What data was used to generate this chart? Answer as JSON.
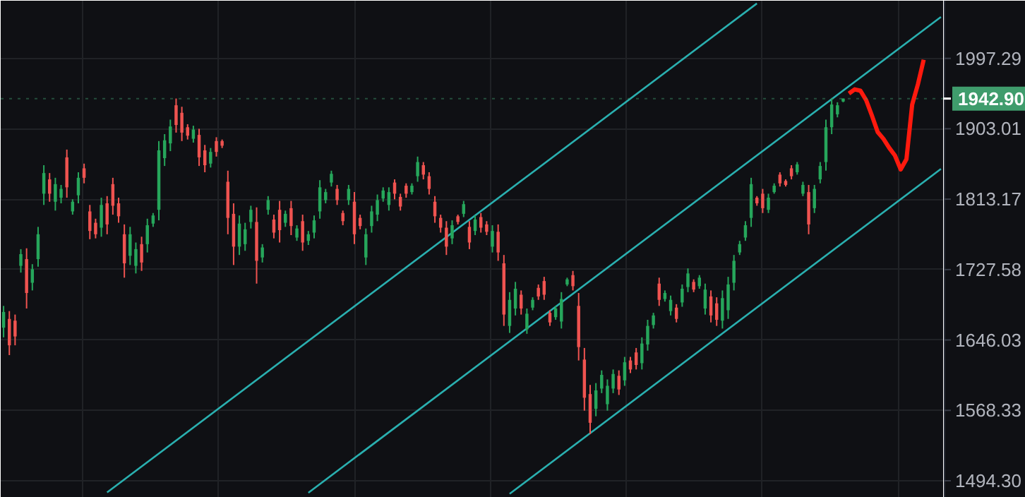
{
  "chart_data": {
    "type": "candlestick",
    "log": true,
    "grid": true,
    "tick_labels": "y",
    "ylim": [
      1477,
      2078
    ],
    "yticks": [
      {
        "value": 1494.3,
        "label": "1494.30"
      },
      1568.33,
      1646.03,
      1727.58,
      1813.17,
      1903.01,
      1997.29
    ],
    "categories": [
      null,
      null,
      null,
      null,
      null,
      null,
      null,
      null,
      null,
      null,
      null,
      null,
      null,
      null,
      null,
      null,
      null,
      null,
      null,
      null,
      null,
      null,
      null,
      null,
      null,
      null,
      null,
      null,
      null,
      null,
      null,
      null,
      null,
      null,
      null,
      null,
      null,
      null,
      null,
      null,
      null,
      null,
      null,
      null,
      null,
      null,
      null,
      null,
      null,
      null,
      null,
      null,
      null,
      null,
      null,
      null,
      null,
      null,
      null,
      null,
      null,
      null,
      null,
      null,
      null,
      null,
      null,
      null,
      null,
      null,
      null,
      null,
      null,
      null,
      null,
      null,
      null,
      null,
      null,
      null,
      null,
      null,
      null,
      null,
      null,
      null,
      null,
      null,
      null,
      null,
      null,
      null,
      null,
      null,
      null,
      null,
      null,
      null,
      null,
      null,
      null,
      null,
      null,
      null,
      null,
      null,
      null,
      null,
      null,
      null,
      null,
      null,
      null,
      null,
      null,
      null,
      null,
      null,
      null,
      null,
      null,
      null,
      null,
      null,
      null,
      null,
      null,
      null,
      null,
      null,
      null,
      null,
      null,
      null,
      null,
      null,
      null,
      null,
      null,
      null,
      null,
      null,
      null,
      null,
      null,
      null,
      null,
      null,
      null,
      null,
      null,
      null,
      null,
      null,
      null,
      null,
      null,
      null,
      null,
      null,
      null,
      null,
      null,
      null
    ],
    "ohlc": [
      [
        1660,
        1685,
        1649,
        1678
      ],
      [
        1670,
        1679,
        1629,
        1640
      ],
      [
        1668,
        1675,
        1640,
        1650
      ],
      [
        1732,
        1752,
        1724,
        1746
      ],
      [
        1740,
        1753,
        1682,
        1700
      ],
      [
        1712,
        1734,
        1703,
        1728
      ],
      [
        1740,
        1779,
        1731,
        1770
      ],
      [
        1820,
        1856,
        1806,
        1846
      ],
      [
        1838,
        1846,
        1810,
        1820
      ],
      [
        1810,
        1840,
        1799,
        1832
      ],
      [
        1815,
        1831,
        1808,
        1826
      ],
      [
        1866,
        1876,
        1815,
        1828
      ],
      [
        1798,
        1813,
        1794,
        1810
      ],
      [
        1818,
        1847,
        1808,
        1840
      ],
      [
        1852,
        1858,
        1833,
        1840
      ],
      [
        1798,
        1806,
        1764,
        1774
      ],
      [
        1784,
        1789,
        1765,
        1770
      ],
      [
        1778,
        1815,
        1767,
        1806
      ],
      [
        1808,
        1817,
        1770,
        1782
      ],
      [
        1832,
        1840,
        1794,
        1805
      ],
      [
        1808,
        1815,
        1784,
        1792
      ],
      [
        1770,
        1782,
        1718,
        1735
      ],
      [
        1744,
        1779,
        1733,
        1770
      ],
      [
        1732,
        1760,
        1723,
        1752
      ],
      [
        1758,
        1767,
        1726,
        1736
      ],
      [
        1758,
        1789,
        1748,
        1781
      ],
      [
        1783,
        1796,
        1779,
        1793
      ],
      [
        1800,
        1887,
        1787,
        1875
      ],
      [
        1865,
        1896,
        1855,
        1888
      ],
      [
        1884,
        1915,
        1874,
        1906
      ],
      [
        1934,
        1943,
        1898,
        1908
      ],
      [
        1924,
        1932,
        1887,
        1898
      ],
      [
        1905,
        1909,
        1889,
        1894
      ],
      [
        1890,
        1907,
        1885,
        1902
      ],
      [
        1895,
        1903,
        1855,
        1866
      ],
      [
        1875,
        1882,
        1847,
        1856
      ],
      [
        1858,
        1878,
        1853,
        1873
      ],
      [
        1887,
        1892,
        1867,
        1873
      ],
      [
        1887,
        1889,
        1878,
        1881
      ],
      [
        1835,
        1849,
        1770,
        1790
      ],
      [
        1795,
        1808,
        1733,
        1755
      ],
      [
        1755,
        1793,
        1745,
        1783
      ],
      [
        1758,
        1784,
        1750,
        1776
      ],
      [
        1785,
        1805,
        1777,
        1800
      ],
      [
        1785,
        1803,
        1711,
        1738
      ],
      [
        1742,
        1758,
        1736,
        1754
      ],
      [
        1800,
        1817,
        1794,
        1812
      ],
      [
        1788,
        1794,
        1765,
        1772
      ],
      [
        1800,
        1811,
        1760,
        1775
      ],
      [
        1784,
        1799,
        1779,
        1795
      ],
      [
        1802,
        1811,
        1769,
        1780
      ],
      [
        1766,
        1781,
        1762,
        1777
      ],
      [
        1786,
        1794,
        1750,
        1760
      ],
      [
        1762,
        1774,
        1757,
        1770
      ],
      [
        1772,
        1793,
        1765,
        1787
      ],
      [
        1798,
        1837,
        1789,
        1828
      ],
      [
        1812,
        1826,
        1808,
        1822
      ],
      [
        1834,
        1849,
        1829,
        1845
      ],
      [
        1826,
        1831,
        1806,
        1812
      ],
      [
        1796,
        1799,
        1781,
        1786
      ],
      [
        1812,
        1831,
        1806,
        1826
      ],
      [
        1810,
        1822,
        1758,
        1770
      ],
      [
        1790,
        1794,
        1776,
        1780
      ],
      [
        1742,
        1777,
        1733,
        1770
      ],
      [
        1780,
        1805,
        1772,
        1798
      ],
      [
        1794,
        1819,
        1786,
        1812
      ],
      [
        1814,
        1828,
        1810,
        1824
      ],
      [
        1806,
        1828,
        1799,
        1822
      ],
      [
        1834,
        1838,
        1813,
        1820
      ],
      [
        1816,
        1820,
        1799,
        1804
      ],
      [
        1830,
        1833,
        1815,
        1820
      ],
      [
        1822,
        1833,
        1819,
        1830
      ],
      [
        1842,
        1867,
        1835,
        1860
      ],
      [
        1856,
        1860,
        1838,
        1844
      ],
      [
        1842,
        1847,
        1819,
        1826
      ],
      [
        1810,
        1817,
        1784,
        1792
      ],
      [
        1790,
        1794,
        1772,
        1778
      ],
      [
        1778,
        1786,
        1745,
        1755
      ],
      [
        1765,
        1787,
        1758,
        1781
      ],
      [
        1792,
        1794,
        1782,
        1785
      ],
      [
        1795,
        1811,
        1791,
        1807
      ],
      [
        1779,
        1786,
        1752,
        1760
      ],
      [
        1774,
        1793,
        1769,
        1788
      ],
      [
        1791,
        1796,
        1772,
        1778
      ],
      [
        1782,
        1786,
        1769,
        1773
      ],
      [
        1755,
        1781,
        1748,
        1774
      ],
      [
        1773,
        1782,
        1738,
        1748
      ],
      [
        1735,
        1745,
        1662,
        1675
      ],
      [
        1662,
        1701,
        1654,
        1692
      ],
      [
        1682,
        1713,
        1674,
        1705
      ],
      [
        1698,
        1703,
        1675,
        1682
      ],
      [
        1658,
        1682,
        1653,
        1676
      ],
      [
        1683,
        1695,
        1680,
        1692
      ],
      [
        1706,
        1710,
        1692,
        1696
      ],
      [
        1714,
        1719,
        1692,
        1698
      ],
      [
        1677,
        1680,
        1662,
        1666
      ],
      [
        1672,
        1685,
        1669,
        1682
      ],
      [
        1667,
        1701,
        1659,
        1693
      ],
      [
        1710,
        1718,
        1708,
        1716
      ],
      [
        1721,
        1726,
        1703,
        1708
      ],
      [
        1685,
        1700,
        1623,
        1638
      ],
      [
        1624,
        1637,
        1568,
        1582
      ],
      [
        1586,
        1596,
        1543,
        1555
      ],
      [
        1570,
        1598,
        1562,
        1590
      ],
      [
        1592,
        1612,
        1587,
        1607
      ],
      [
        1575,
        1602,
        1568,
        1595
      ],
      [
        1592,
        1613,
        1587,
        1608
      ],
      [
        1606,
        1612,
        1585,
        1591
      ],
      [
        1601,
        1627,
        1595,
        1621
      ],
      [
        1623,
        1627,
        1609,
        1613
      ],
      [
        1632,
        1637,
        1613,
        1618
      ],
      [
        1620,
        1649,
        1613,
        1642
      ],
      [
        1641,
        1669,
        1634,
        1662
      ],
      [
        1663,
        1677,
        1659,
        1674
      ],
      [
        1711,
        1718,
        1685,
        1692
      ],
      [
        1693,
        1703,
        1690,
        1700
      ],
      [
        1679,
        1697,
        1674,
        1692
      ],
      [
        1683,
        1687,
        1666,
        1670
      ],
      [
        1689,
        1710,
        1684,
        1705
      ],
      [
        1707,
        1729,
        1701,
        1723
      ],
      [
        1713,
        1716,
        1701,
        1704
      ],
      [
        1708,
        1721,
        1705,
        1718
      ],
      [
        1682,
        1711,
        1675,
        1704
      ],
      [
        1696,
        1703,
        1666,
        1674
      ],
      [
        1688,
        1695,
        1662,
        1669
      ],
      [
        1668,
        1703,
        1659,
        1694
      ],
      [
        1680,
        1719,
        1670,
        1710
      ],
      [
        1712,
        1745,
        1703,
        1738
      ],
      [
        1748,
        1762,
        1745,
        1758
      ],
      [
        1766,
        1786,
        1762,
        1781
      ],
      [
        1790,
        1840,
        1779,
        1832
      ],
      [
        1815,
        1817,
        1805,
        1808
      ],
      [
        1820,
        1826,
        1796,
        1802
      ],
      [
        1800,
        1820,
        1796,
        1815
      ],
      [
        1822,
        1833,
        1820,
        1830
      ],
      [
        1844,
        1847,
        1829,
        1833
      ],
      [
        1836,
        1838,
        1829,
        1831
      ],
      [
        1852,
        1856,
        1838,
        1842
      ],
      [
        1847,
        1860,
        1844,
        1857
      ],
      [
        1820,
        1835,
        1817,
        1831
      ],
      [
        1822,
        1831,
        1770,
        1782
      ],
      [
        1802,
        1831,
        1796,
        1826
      ],
      [
        1838,
        1860,
        1833,
        1855
      ],
      [
        1860,
        1915,
        1849,
        1905
      ],
      [
        1905,
        1943,
        1896,
        1935
      ],
      [
        1922,
        1938,
        1918,
        1934
      ],
      [
        1939,
        1943,
        1938,
        1942.9
      ],
      null,
      null,
      null,
      null,
      null,
      null,
      null,
      null,
      null,
      null,
      null,
      null,
      null,
      null,
      null,
      null,
      null
    ],
    "colors": [
      "#26a65b",
      "#ef5350",
      "#ef5350",
      "#26a65b",
      "#ef5350",
      "#26a65b",
      "#26a65b",
      "#26a65b",
      "#ef5350",
      "#26a65b",
      "#26a65b",
      "#ef5350",
      "#26a65b",
      "#26a65b",
      "#ef5350",
      "#ef5350",
      "#ef5350",
      "#26a65b",
      "#ef5350",
      "#ef5350",
      "#ef5350",
      "#ef5350",
      "#26a65b",
      "#26a65b",
      "#ef5350",
      "#26a65b",
      "#26a65b",
      "#26a65b",
      "#26a65b",
      "#26a65b",
      "#ef5350",
      "#ef5350",
      "#ef5350",
      "#26a65b",
      "#ef5350",
      "#ef5350",
      "#26a65b",
      "#ef5350",
      "#ef5350",
      "#ef5350",
      "#ef5350",
      "#26a65b",
      "#26a65b",
      "#26a65b",
      "#ef5350",
      "#26a65b",
      "#26a65b",
      "#ef5350",
      "#ef5350",
      "#26a65b",
      "#ef5350",
      "#26a65b",
      "#ef5350",
      "#26a65b",
      "#26a65b",
      "#26a65b",
      "#26a65b",
      "#26a65b",
      "#ef5350",
      "#ef5350",
      "#26a65b",
      "#ef5350",
      "#ef5350",
      "#26a65b",
      "#26a65b",
      "#26a65b",
      "#26a65b",
      "#26a65b",
      "#ef5350",
      "#ef5350",
      "#ef5350",
      "#26a65b",
      "#26a65b",
      "#ef5350",
      "#ef5350",
      "#ef5350",
      "#ef5350",
      "#ef5350",
      "#26a65b",
      "#ef5350",
      "#26a65b",
      "#ef5350",
      "#26a65b",
      "#ef5350",
      "#ef5350",
      "#26a65b",
      "#ef5350",
      "#ef5350",
      "#26a65b",
      "#26a65b",
      "#ef5350",
      "#26a65b",
      "#26a65b",
      "#ef5350",
      "#ef5350",
      "#ef5350",
      "#26a65b",
      "#26a65b",
      "#26a65b",
      "#ef5350",
      "#ef5350",
      "#ef5350",
      "#ef5350",
      "#26a65b",
      "#26a65b",
      "#26a65b",
      "#26a65b",
      "#ef5350",
      "#26a65b",
      "#ef5350",
      "#ef5350",
      "#26a65b",
      "#26a65b",
      "#26a65b",
      "#ef5350",
      "#26a65b",
      "#26a65b",
      "#ef5350",
      "#26a65b",
      "#26a65b",
      "#ef5350",
      "#26a65b",
      "#26a65b",
      "#ef5350",
      "#ef5350",
      "#26a65b",
      "#26a65b",
      "#26a65b",
      "#26a65b",
      "#26a65b",
      "#26a65b",
      "#ef5350",
      "#ef5350",
      "#26a65b",
      "#26a65b",
      "#ef5350",
      "#ef5350",
      "#ef5350",
      "#26a65b",
      "#26a65b",
      "#ef5350",
      "#26a65b",
      "#26a65b",
      "#26a65b",
      "#26a65b",
      "#26a65b",
      "#26a65b",
      null,
      null,
      null,
      null,
      null,
      null,
      null,
      null,
      null,
      null,
      null,
      null,
      null,
      null,
      null,
      null,
      null
    ],
    "series": [
      {
        "type": "line",
        "color": "#2ab0b0",
        "values": [
          null,
          null,
          null,
          null,
          null,
          null,
          null,
          null,
          null,
          null,
          null,
          null,
          null,
          null,
          null,
          null,
          null,
          null,
          1482.4,
          null,
          null,
          null,
          null,
          null,
          null,
          null,
          null,
          null,
          null,
          null,
          null,
          null,
          null,
          null,
          null,
          null,
          null,
          null,
          null,
          null,
          null,
          null,
          null,
          null,
          null,
          null,
          null,
          null,
          null,
          null,
          null,
          null,
          null,
          null,
          null,
          null,
          null,
          null,
          null,
          null,
          null,
          null,
          null,
          null,
          null,
          null,
          null,
          null,
          null,
          null,
          null,
          null,
          null,
          null,
          null,
          null,
          null,
          null,
          null,
          null,
          null,
          null,
          null,
          null,
          null,
          null,
          null,
          null,
          null,
          null,
          null,
          null,
          null,
          null,
          null,
          null,
          null,
          null,
          null,
          null,
          null,
          null,
          null,
          null,
          null,
          null,
          null,
          null,
          null,
          null,
          null,
          null,
          null,
          null,
          null,
          null,
          null,
          null,
          null,
          null,
          null,
          null,
          null,
          null,
          null,
          null,
          null,
          null,
          null,
          null,
          null,
          2074.1,
          null,
          null,
          null,
          null,
          null,
          null,
          null,
          null,
          null,
          null,
          null,
          null,
          null,
          null,
          null,
          null,
          null,
          null,
          null,
          null,
          null,
          null,
          null,
          null,
          null,
          null,
          null,
          null,
          null,
          null,
          null,
          null
        ]
      },
      {
        "type": "line",
        "color": "#2ab0b0",
        "values": [
          null,
          null,
          null,
          null,
          null,
          null,
          null,
          null,
          null,
          null,
          null,
          null,
          null,
          null,
          null,
          null,
          null,
          null,
          null,
          null,
          null,
          null,
          null,
          null,
          null,
          null,
          null,
          null,
          null,
          null,
          null,
          null,
          null,
          null,
          null,
          null,
          null,
          null,
          null,
          null,
          null,
          null,
          null,
          null,
          null,
          null,
          null,
          null,
          null,
          null,
          null,
          null,
          null,
          1482.0,
          null,
          null,
          null,
          null,
          null,
          null,
          null,
          null,
          null,
          null,
          null,
          null,
          null,
          null,
          null,
          null,
          null,
          null,
          null,
          null,
          null,
          null,
          null,
          null,
          null,
          null,
          null,
          null,
          null,
          null,
          null,
          null,
          null,
          null,
          null,
          null,
          null,
          null,
          null,
          null,
          null,
          null,
          null,
          null,
          null,
          null,
          null,
          null,
          null,
          null,
          null,
          null,
          null,
          null,
          null,
          null,
          null,
          null,
          null,
          null,
          null,
          null,
          null,
          null,
          null,
          null,
          null,
          null,
          null,
          null,
          null,
          null,
          null,
          null,
          null,
          null,
          null,
          null,
          null,
          null,
          null,
          null,
          null,
          null,
          null,
          null,
          null,
          null,
          null,
          null,
          null,
          null,
          null,
          null,
          null,
          null,
          null,
          null,
          null,
          null,
          null,
          null,
          null,
          null,
          null,
          null,
          null,
          null,
          null,
          2054.9
        ]
      },
      {
        "type": "line",
        "color": "#2ab0b0",
        "values": [
          null,
          null,
          null,
          null,
          null,
          null,
          null,
          null,
          null,
          null,
          null,
          null,
          null,
          null,
          null,
          null,
          null,
          null,
          null,
          null,
          null,
          null,
          null,
          null,
          null,
          null,
          null,
          null,
          null,
          null,
          null,
          null,
          null,
          null,
          null,
          null,
          null,
          null,
          null,
          null,
          null,
          null,
          null,
          null,
          null,
          null,
          null,
          null,
          null,
          null,
          null,
          null,
          null,
          null,
          null,
          null,
          null,
          null,
          null,
          null,
          null,
          null,
          null,
          null,
          null,
          null,
          null,
          null,
          null,
          null,
          null,
          null,
          null,
          null,
          null,
          null,
          null,
          null,
          null,
          null,
          null,
          null,
          null,
          null,
          null,
          null,
          null,
          null,
          1481.0,
          null,
          null,
          null,
          null,
          null,
          null,
          null,
          null,
          null,
          null,
          null,
          null,
          null,
          null,
          null,
          null,
          null,
          null,
          null,
          null,
          null,
          null,
          null,
          null,
          null,
          null,
          null,
          null,
          null,
          null,
          null,
          null,
          null,
          null,
          null,
          null,
          null,
          null,
          null,
          null,
          null,
          null,
          null,
          null,
          null,
          null,
          null,
          null,
          null,
          null,
          null,
          null,
          null,
          null,
          null,
          null,
          null,
          null,
          null,
          null,
          null,
          null,
          null,
          null,
          null,
          null,
          null,
          null,
          null,
          null,
          null,
          null,
          null,
          null,
          1851.2
        ]
      },
      {
        "type": "line",
        "color": "#ff1a0e",
        "values": [
          null,
          null,
          null,
          null,
          null,
          null,
          null,
          null,
          null,
          null,
          null,
          null,
          null,
          null,
          null,
          null,
          null,
          null,
          null,
          null,
          null,
          null,
          null,
          null,
          null,
          null,
          null,
          null,
          null,
          null,
          null,
          null,
          null,
          null,
          null,
          null,
          null,
          null,
          null,
          null,
          null,
          null,
          null,
          null,
          null,
          null,
          null,
          null,
          null,
          null,
          null,
          null,
          null,
          null,
          null,
          null,
          null,
          null,
          null,
          null,
          null,
          null,
          null,
          null,
          null,
          null,
          null,
          null,
          null,
          null,
          null,
          null,
          null,
          null,
          null,
          null,
          null,
          null,
          null,
          null,
          null,
          null,
          null,
          null,
          null,
          null,
          null,
          null,
          null,
          null,
          null,
          null,
          null,
          null,
          null,
          null,
          null,
          null,
          null,
          null,
          null,
          null,
          null,
          null,
          null,
          null,
          null,
          null,
          null,
          null,
          null,
          null,
          null,
          null,
          null,
          null,
          null,
          null,
          null,
          null,
          null,
          null,
          null,
          null,
          null,
          null,
          null,
          null,
          null,
          null,
          null,
          null,
          null,
          null,
          null,
          null,
          null,
          null,
          null,
          null,
          null,
          null,
          null,
          null,
          null,
          null,
          null,
          1949.6,
          1955.2,
          1953.4,
          1940.6,
          1920.3,
          1898.8,
          1889.9,
          1878.3,
          1868.4,
          1850.6,
          1863.7,
          1934.9,
          1962.2,
          1995.4,
          null,
          null,
          null
        ]
      }
    ],
    "ref_lines": [
      {
        "axis": "y",
        "value": 1942.9,
        "label": "1942.90",
        "color": "#3f9c6c"
      }
    ]
  }
}
